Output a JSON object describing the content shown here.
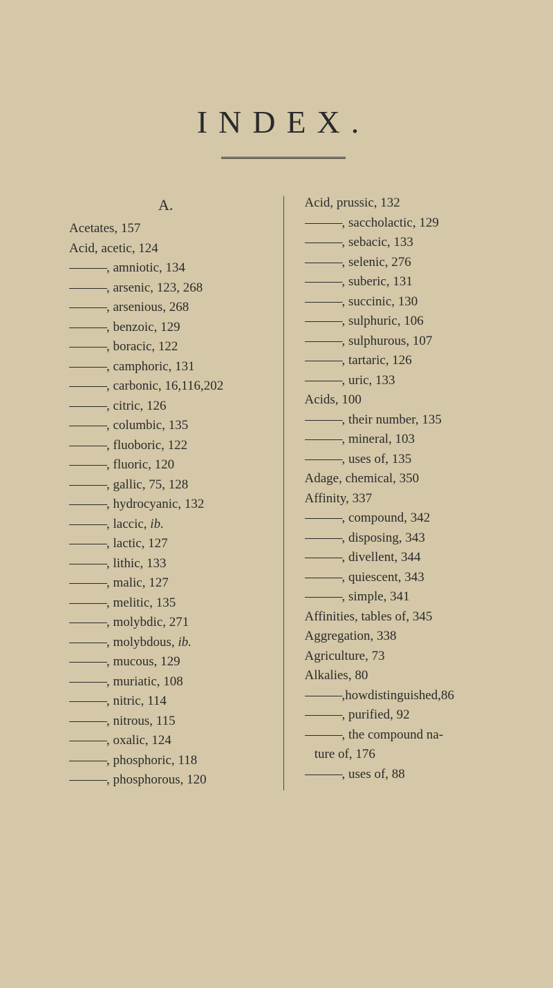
{
  "title": "INDEX.",
  "sectionLetter": "A.",
  "leftColumn": [
    {
      "text": "Acetates, 157",
      "dash": false
    },
    {
      "text": "Acid, acetic, 124",
      "dash": false
    },
    {
      "text": ", amniotic, 134",
      "dash": true
    },
    {
      "text": ", arsenic, 123, 268",
      "dash": true
    },
    {
      "text": ", arsenious, 268",
      "dash": true
    },
    {
      "text": ", benzoic, 129",
      "dash": true
    },
    {
      "text": ", boracic, 122",
      "dash": true
    },
    {
      "text": ", camphoric, 131",
      "dash": true
    },
    {
      "text": ", carbonic, 16,116,202",
      "dash": true
    },
    {
      "text": ", citric, 126",
      "dash": true
    },
    {
      "text": ", columbic, 135",
      "dash": true
    },
    {
      "text": ", fluoboric, 122",
      "dash": true
    },
    {
      "text": ", fluoric, 120",
      "dash": true
    },
    {
      "text": ", gallic, 75, 128",
      "dash": true
    },
    {
      "text": ", hydrocyanic, 132",
      "dash": true
    },
    {
      "text": ", laccic, ib.",
      "dash": true,
      "italic": "ib."
    },
    {
      "text": ", lactic, 127",
      "dash": true
    },
    {
      "text": ", lithic, 133",
      "dash": true
    },
    {
      "text": ", malic, 127",
      "dash": true
    },
    {
      "text": ", melitic, 135",
      "dash": true
    },
    {
      "text": ", molybdic, 271",
      "dash": true
    },
    {
      "text": ", molybdous, ib.",
      "dash": true,
      "italic": "ib."
    },
    {
      "text": ", mucous, 129",
      "dash": true
    },
    {
      "text": ", muriatic, 108",
      "dash": true
    },
    {
      "text": ", nitric, 114",
      "dash": true
    },
    {
      "text": ", nitrous, 115",
      "dash": true
    },
    {
      "text": ", oxalic, 124",
      "dash": true
    },
    {
      "text": ", phosphoric, 118",
      "dash": true
    },
    {
      "text": ", phosphorous, 120",
      "dash": true
    }
  ],
  "rightColumn": [
    {
      "text": "Acid, prussic, 132",
      "dash": false
    },
    {
      "text": ", saccholactic, 129",
      "dash": true
    },
    {
      "text": ", sebacic, 133",
      "dash": true
    },
    {
      "text": ", selenic, 276",
      "dash": true
    },
    {
      "text": ", suberic, 131",
      "dash": true
    },
    {
      "text": ", succinic, 130",
      "dash": true
    },
    {
      "text": ", sulphuric, 106",
      "dash": true
    },
    {
      "text": ", sulphurous, 107",
      "dash": true
    },
    {
      "text": ", tartaric, 126",
      "dash": true
    },
    {
      "text": ", uric, 133",
      "dash": true
    },
    {
      "text": "Acids, 100",
      "dash": false
    },
    {
      "text": ", their number, 135",
      "dash": true
    },
    {
      "text": ", mineral, 103",
      "dash": true
    },
    {
      "text": ", uses of, 135",
      "dash": true
    },
    {
      "text": "Adage, chemical, 350",
      "dash": false
    },
    {
      "text": "Affinity, 337",
      "dash": false
    },
    {
      "text": ", compound, 342",
      "dash": true
    },
    {
      "text": ", disposing, 343",
      "dash": true
    },
    {
      "text": ", divellent, 344",
      "dash": true
    },
    {
      "text": ", quiescent, 343",
      "dash": true
    },
    {
      "text": ", simple, 341",
      "dash": true
    },
    {
      "text": "Affinities, tables of, 345",
      "dash": false
    },
    {
      "text": "Aggregation, 338",
      "dash": false
    },
    {
      "text": "Agriculture, 73",
      "dash": false
    },
    {
      "text": "Alkalies, 80",
      "dash": false
    },
    {
      "text": ",howdistinguished,86",
      "dash": true
    },
    {
      "text": ", purified, 92",
      "dash": true
    },
    {
      "text": ", the compound na-",
      "dash": true
    },
    {
      "text": "ture of, 176",
      "dash": false,
      "indent": true
    },
    {
      "text": ", uses of, 88",
      "dash": true
    }
  ],
  "styling": {
    "backgroundColor": "#d4c8a8",
    "textColor": "#2a2a2a",
    "titleFontSize": 46,
    "bodyFontSize": 19,
    "lineHeight": 1.5,
    "dashString": "———"
  }
}
